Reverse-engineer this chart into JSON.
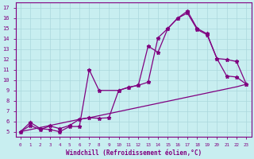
{
  "xlabel": "Windchill (Refroidissement éolien,°C)",
  "bg_color": "#c8eef0",
  "grid_color": "#b0dde0",
  "line_color": "#800080",
  "x_ticks": [
    0,
    1,
    2,
    3,
    4,
    5,
    6,
    7,
    8,
    9,
    10,
    11,
    12,
    13,
    14,
    15,
    16,
    17,
    18,
    19,
    20,
    21,
    22,
    23
  ],
  "y_ticks": [
    5,
    6,
    7,
    8,
    9,
    10,
    11,
    12,
    13,
    14,
    15,
    16,
    17
  ],
  "xlim": [
    -0.5,
    23.5
  ],
  "ylim": [
    4.5,
    17.5
  ],
  "line1_x": [
    0,
    1,
    2,
    3,
    4,
    5,
    6,
    7,
    8,
    9,
    10,
    11,
    12,
    13,
    14,
    15,
    16,
    17,
    18,
    19,
    20,
    21,
    22,
    23
  ],
  "line1_y": [
    5.0,
    5.2,
    5.4,
    5.6,
    5.8,
    6.0,
    6.2,
    6.35,
    6.55,
    6.75,
    6.95,
    7.15,
    7.35,
    7.55,
    7.75,
    7.95,
    8.15,
    8.35,
    8.55,
    8.75,
    8.95,
    9.15,
    9.35,
    9.6
  ],
  "line2_x": [
    0,
    1,
    2,
    3,
    4,
    5,
    6,
    7,
    8,
    10,
    11,
    12,
    13,
    14,
    15,
    16,
    17,
    18,
    19,
    20,
    21,
    22,
    23
  ],
  "line2_y": [
    5.0,
    5.9,
    5.3,
    5.2,
    5.0,
    5.5,
    5.5,
    11.0,
    9.0,
    9.0,
    9.3,
    9.5,
    13.3,
    12.7,
    15.0,
    16.0,
    16.7,
    15.0,
    14.5,
    12.1,
    10.4,
    10.3,
    9.6
  ],
  "line3_x": [
    0,
    1,
    2,
    3,
    4,
    5,
    6,
    7,
    8,
    9,
    10,
    11,
    12,
    13,
    14,
    15,
    16,
    17,
    18,
    19,
    20,
    21,
    22,
    23
  ],
  "line3_y": [
    5.0,
    5.6,
    5.2,
    5.55,
    5.3,
    5.6,
    6.2,
    6.35,
    6.3,
    6.35,
    9.0,
    9.3,
    9.5,
    9.8,
    14.1,
    15.0,
    16.0,
    16.5,
    14.9,
    14.4,
    12.1,
    12.0,
    11.8,
    9.6
  ]
}
